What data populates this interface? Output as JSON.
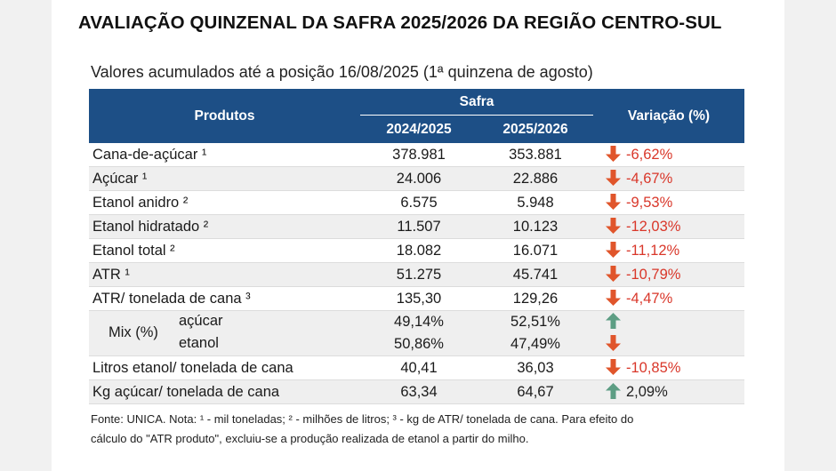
{
  "title": "AVALIAÇÃO QUINZENAL DA SAFRA 2025/2026 DA REGIÃO CENTRO-SUL",
  "subtitle": "Valores acumulados até a posição 16/08/2025 (1ª quinzena de agosto)",
  "table": {
    "header": {
      "produtos": "Produtos",
      "safra": "Safra",
      "col_a": "2024/2025",
      "col_b": "2025/2026",
      "variacao": "Variação (%)"
    },
    "rows": [
      {
        "produto": "Cana-de-açúcar ¹",
        "a": "378.981",
        "b": "353.881",
        "var": "-6,62%",
        "trend": "down"
      },
      {
        "produto": "Açúcar ¹",
        "a": "24.006",
        "b": "22.886",
        "var": "-4,67%",
        "trend": "down"
      },
      {
        "produto": "Etanol anidro ²",
        "a": "6.575",
        "b": "5.948",
        "var": "-9,53%",
        "trend": "down"
      },
      {
        "produto": "Etanol hidratado ²",
        "a": "11.507",
        "b": "10.123",
        "var": "-12,03%",
        "trend": "down"
      },
      {
        "produto": "Etanol total ²",
        "a": "18.082",
        "b": "16.071",
        "var": "-11,12%",
        "trend": "down"
      },
      {
        "produto": "ATR ¹",
        "a": "51.275",
        "b": "45.741",
        "var": "-10,79%",
        "trend": "down"
      },
      {
        "produto": "ATR/ tonelada de cana ³",
        "a": "135,30",
        "b": "129,26",
        "var": "-4,47%",
        "trend": "down"
      }
    ],
    "mix": {
      "label": "Mix (%)",
      "acucar": {
        "label": "açúcar",
        "a": "49,14%",
        "b": "52,51%",
        "trend": "up"
      },
      "etanol": {
        "label": "etanol",
        "a": "50,86%",
        "b": "47,49%",
        "trend": "down"
      }
    },
    "rows_after": [
      {
        "produto": "Litros etanol/ tonelada de cana",
        "a": "40,41",
        "b": "36,03",
        "var": "-10,85%",
        "trend": "down"
      },
      {
        "produto": "Kg açúcar/ tonelada de cana",
        "a": "63,34",
        "b": "64,67",
        "var": "2,09%",
        "trend": "up"
      }
    ]
  },
  "icons": {
    "down": "arrow-down-icon",
    "up": "arrow-up-icon"
  },
  "colors": {
    "header_bg": "#1d4f86",
    "down_arrow": "#e0552b",
    "up_arrow": "#5d9e84",
    "negative_text": "#d9372a"
  },
  "footnote": {
    "line1": "Fonte: UNICA. Nota: ¹ - mil toneladas; ² - milhões de litros; ³ - kg de ATR/ tonelada de cana. Para efeito do",
    "line2": "cálculo do \"ATR produto\", excluiu-se a produção realizada de etanol a partir do milho."
  }
}
